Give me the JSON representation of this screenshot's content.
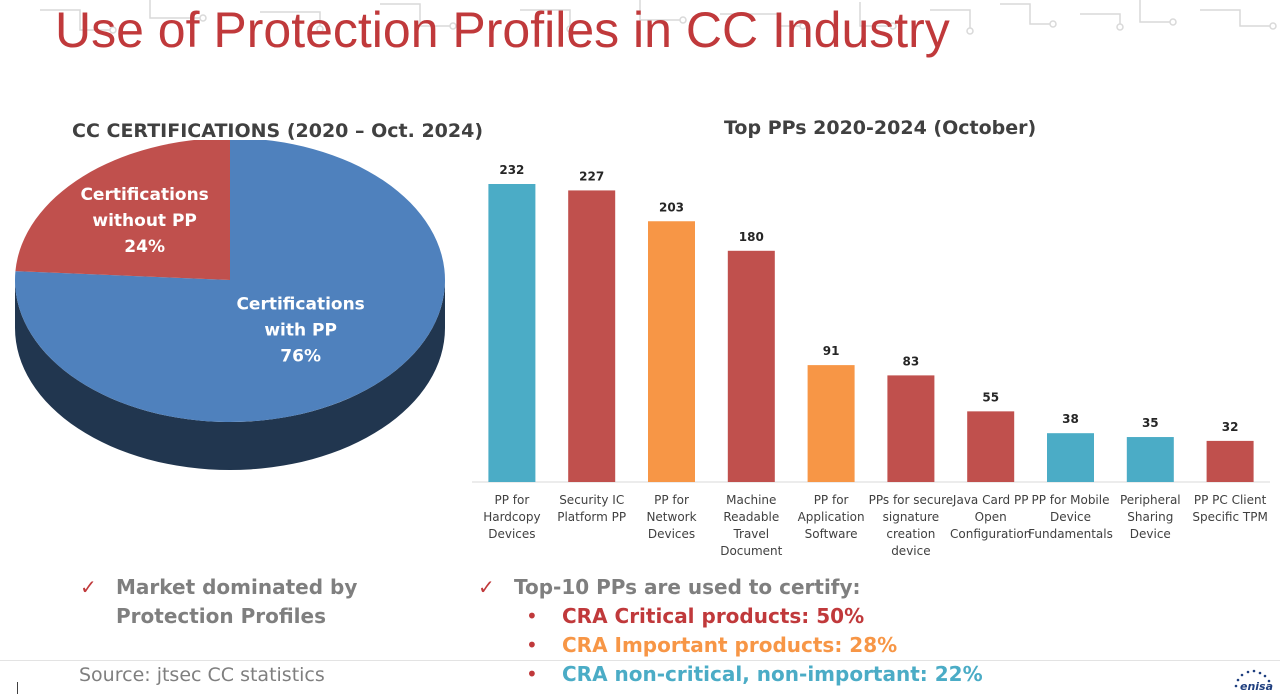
{
  "page": {
    "title": "Use of Protection Profiles in CC Industry",
    "source": "Source: jtsec CC statistics",
    "logo": "enisa"
  },
  "colors": {
    "title": "#c0393b",
    "pie_with_pp": "#4f81bd",
    "pie_without_pp": "#c0504d",
    "teal": "#4bacc6",
    "red": "#c0504d",
    "orange": "#f79646",
    "critical": "#c0393b",
    "important": "#f79646",
    "noncritical": "#4bacc6"
  },
  "chart_data": [
    {
      "type": "pie",
      "title": "CC CERTIFICATIONS (2020 – Oct. 2024)",
      "slices": [
        {
          "label_lines": [
            "Certifications",
            "with PP",
            "76%"
          ],
          "value": 76,
          "color": "#4f81bd"
        },
        {
          "label_lines": [
            "Certifications",
            "without PP",
            "24%"
          ],
          "value": 24,
          "color": "#c0504d"
        }
      ]
    },
    {
      "type": "bar",
      "title": "Top PPs  2020-2024 (October)",
      "ylim": [
        0,
        232
      ],
      "categories": [
        [
          "PP for",
          "Hardcopy",
          "Devices"
        ],
        [
          "Security IC",
          "Platform PP"
        ],
        [
          "PP for",
          "Network",
          "Devices"
        ],
        [
          "Machine",
          "Readable",
          "Travel",
          "Document"
        ],
        [
          "PP for",
          "Application",
          "Software"
        ],
        [
          "PPs for secure",
          "signature",
          "creation",
          "device"
        ],
        [
          "Java Card PP",
          "Open",
          "Configuration"
        ],
        [
          "PP for Mobile",
          "Device",
          "Fundamentals"
        ],
        [
          "Peripheral",
          "Sharing",
          "Device"
        ],
        [
          "PP PC Client",
          "Specific TPM"
        ]
      ],
      "values": [
        232,
        227,
        203,
        180,
        91,
        83,
        55,
        38,
        35,
        32
      ],
      "colors": [
        "#4bacc6",
        "#c0504d",
        "#f79646",
        "#c0504d",
        "#f79646",
        "#c0504d",
        "#c0504d",
        "#4bacc6",
        "#4bacc6",
        "#c0504d"
      ]
    }
  ],
  "bullets": {
    "left": [
      "Market dominated by",
      "Protection Profiles"
    ],
    "right_title": "Top-10 PPs are used to certify:",
    "right_items": [
      "CRA Critical products: 50%",
      "CRA Important products: 28%",
      "CRA non-critical, non-important: 22%"
    ]
  }
}
